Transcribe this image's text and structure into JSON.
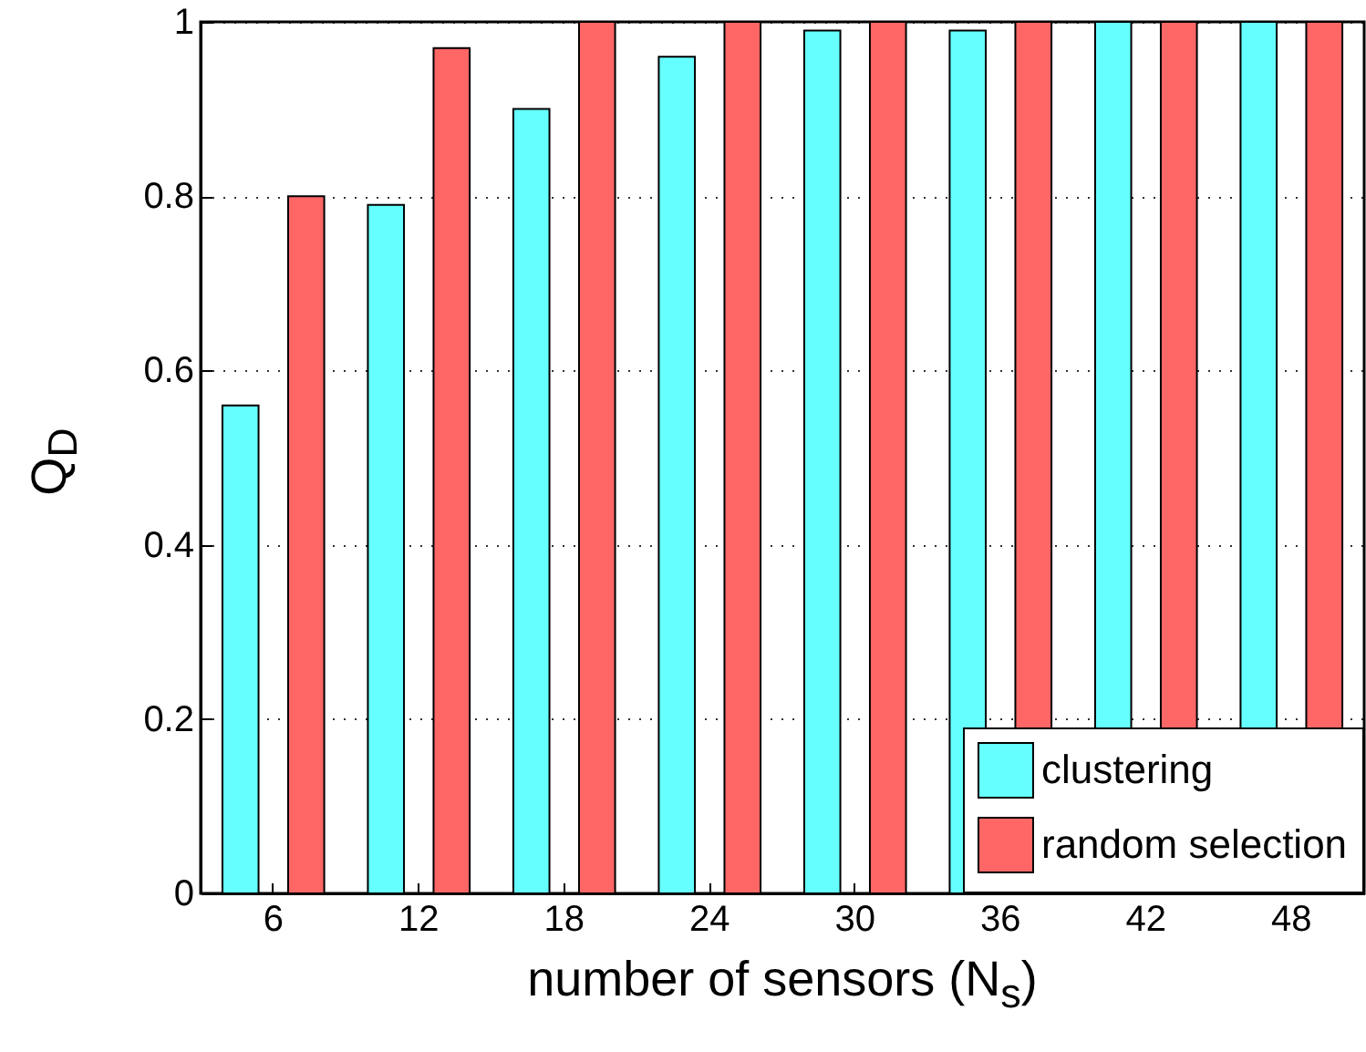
{
  "chart_data": {
    "type": "bar",
    "xlabel": "number of sensors (N$_{s}$)",
    "ylabel": "Q$_{D}$",
    "categories": [
      "6",
      "12",
      "18",
      "24",
      "30",
      "36",
      "42",
      "48"
    ],
    "series": [
      {
        "name": "clustering",
        "color": "#66ffff",
        "values": [
          0.56,
          0.79,
          0.9,
          0.96,
          0.99,
          0.99,
          1.0,
          1.0
        ]
      },
      {
        "name": "random selection",
        "color": "#ff6666",
        "values": [
          0.8,
          0.97,
          1.0,
          1.0,
          1.0,
          1.0,
          1.0,
          1.0
        ]
      }
    ],
    "ylim": [
      0,
      1
    ],
    "yticks": [
      0,
      0.2,
      0.4,
      0.6,
      0.8,
      1
    ],
    "grid": "y",
    "legend": "bottom right"
  }
}
